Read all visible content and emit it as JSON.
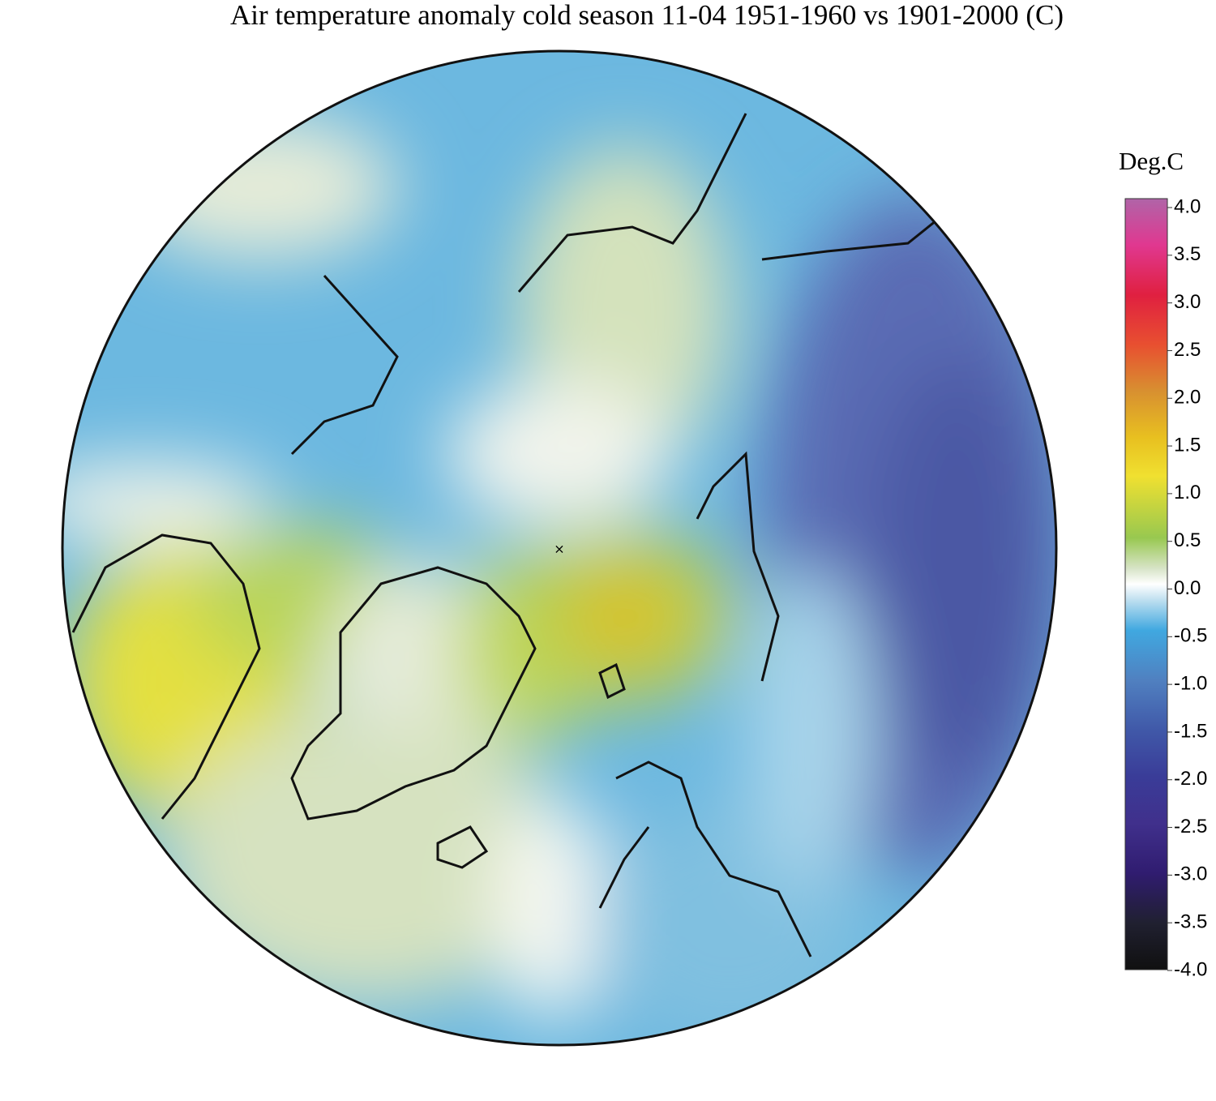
{
  "title": "Air temperature anomaly cold season 11-04 1951-1960 vs 1901-2000 (C)",
  "colorbar": {
    "label": "Deg.C",
    "lim": [
      -4,
      4
    ],
    "ticks": [
      {
        "value": 4,
        "label": "4.0"
      },
      3.5,
      {
        "value": 3,
        "label": "3.0"
      },
      2.5,
      {
        "value": 2,
        "label": "2.0"
      },
      1.5,
      {
        "value": 1,
        "label": "1.0"
      },
      0.5,
      {
        "value": 0,
        "label": "0.0"
      },
      -0.5,
      {
        "value": -1,
        "label": "-1.0"
      },
      -1.5,
      {
        "value": -2,
        "label": "-2.0"
      },
      -2.5,
      {
        "value": -3,
        "label": "-3.0"
      },
      -3.5,
      {
        "value": -4,
        "label": "-4.0"
      }
    ]
  }
}
